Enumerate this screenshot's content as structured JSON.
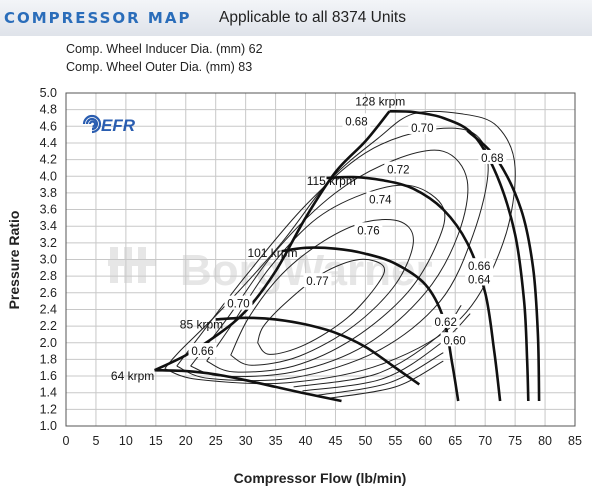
{
  "header": {
    "title": "COMPRESSOR MAP",
    "subtitle": "Applicable to all 8374 Units"
  },
  "specs": {
    "inducer": "Comp. Wheel Inducer Dia. (mm) 62",
    "outer": "Comp. Wheel Outer Dia. (mm) 83"
  },
  "logo": {
    "efr": "EFR",
    "watermark": "BorgWarner"
  },
  "colors": {
    "header_text": "#2a6dba",
    "logo": "#2a5db0",
    "curves": "#111111"
  },
  "chart_data": {
    "type": "line",
    "xlabel": "Compressor Flow (lb/min)",
    "ylabel": "Pressure Ratio",
    "xlim": [
      0,
      85
    ],
    "ylim": [
      1.0,
      5.0
    ],
    "xticks": [
      0,
      5,
      10,
      15,
      20,
      25,
      30,
      35,
      40,
      45,
      50,
      55,
      60,
      65,
      70,
      75,
      80,
      85
    ],
    "yticks": [
      1.0,
      1.2,
      1.4,
      1.6,
      1.8,
      2.0,
      2.2,
      2.4,
      2.6,
      2.8,
      3.0,
      3.2,
      3.4,
      3.6,
      3.8,
      4.0,
      4.2,
      4.4,
      4.6,
      4.8,
      5.0
    ],
    "ytick_labels": [
      "1.0",
      "1.2",
      "1.4",
      "1.6",
      "1.8",
      "2.0",
      "2.2",
      "2.4",
      "2.6",
      "2.8",
      "3.0",
      "3.2",
      "3.4",
      "3.6",
      "3.8",
      "4.0",
      "4.2",
      "4.4",
      "4.6",
      "4.8",
      "5.0"
    ],
    "grid": true,
    "surge_line": [
      [
        14.8,
        1.67
      ],
      [
        20,
        1.85
      ],
      [
        25,
        2.08
      ],
      [
        30,
        2.38
      ],
      [
        35,
        2.86
      ],
      [
        40,
        3.5
      ],
      [
        45,
        4.05
      ],
      [
        50,
        4.42
      ],
      [
        54,
        4.78
      ]
    ],
    "speed_lines": [
      {
        "label": "64 krpm",
        "points": [
          [
            14.8,
            1.67
          ],
          [
            20,
            1.66
          ],
          [
            25,
            1.62
          ],
          [
            30,
            1.55
          ],
          [
            35,
            1.47
          ],
          [
            40,
            1.39
          ],
          [
            46,
            1.3
          ]
        ]
      },
      {
        "label": "85 krpm",
        "points": [
          [
            25,
            2.28
          ],
          [
            30,
            2.3
          ],
          [
            35,
            2.28
          ],
          [
            40,
            2.22
          ],
          [
            45,
            2.12
          ],
          [
            50,
            1.95
          ],
          [
            55,
            1.7
          ],
          [
            59,
            1.5
          ]
        ]
      },
      {
        "label": "101 krpm",
        "points": [
          [
            36,
            3.1
          ],
          [
            40,
            3.14
          ],
          [
            45,
            3.13
          ],
          [
            50,
            3.07
          ],
          [
            55,
            2.95
          ],
          [
            60,
            2.7
          ],
          [
            63,
            2.3
          ],
          [
            64.5,
            1.75
          ],
          [
            65.5,
            1.3
          ]
        ]
      },
      {
        "label": "115 krpm",
        "points": [
          [
            43.5,
            3.98
          ],
          [
            48,
            3.99
          ],
          [
            53,
            3.95
          ],
          [
            58,
            3.85
          ],
          [
            63,
            3.6
          ],
          [
            67,
            3.2
          ],
          [
            70,
            2.6
          ],
          [
            71.5,
            1.9
          ],
          [
            72.5,
            1.3
          ]
        ]
      },
      {
        "label": "128 krpm",
        "points": [
          [
            54,
            4.78
          ],
          [
            58,
            4.77
          ],
          [
            63,
            4.7
          ],
          [
            68,
            4.5
          ],
          [
            72,
            4.0
          ],
          [
            75,
            3.3
          ],
          [
            76.5,
            2.5
          ],
          [
            77,
            1.8
          ],
          [
            77.2,
            1.3
          ]
        ]
      }
    ],
    "choke_line": [
      [
        67,
        4.55
      ],
      [
        72,
        4.2
      ],
      [
        76,
        3.6
      ],
      [
        78,
        2.9
      ],
      [
        78.8,
        2.1
      ],
      [
        79,
        1.3
      ]
    ],
    "efficiency_islands": [
      {
        "label": "0.77",
        "points": [
          [
            32,
            2.0
          ],
          [
            34,
            1.86
          ],
          [
            40,
            1.98
          ],
          [
            47,
            2.3
          ],
          [
            52,
            2.7
          ],
          [
            53,
            2.92
          ],
          [
            49,
            3.0
          ],
          [
            43,
            2.84
          ],
          [
            37,
            2.5
          ],
          [
            33,
            2.2
          ]
        ]
      },
      {
        "label": "0.76",
        "points": [
          [
            27.5,
            1.85
          ],
          [
            31,
            1.73
          ],
          [
            39,
            1.84
          ],
          [
            48,
            2.2
          ],
          [
            55,
            2.7
          ],
          [
            58,
            3.2
          ],
          [
            56,
            3.45
          ],
          [
            50,
            3.45
          ],
          [
            43,
            3.22
          ],
          [
            36,
            2.82
          ],
          [
            30.5,
            2.3
          ]
        ]
      },
      {
        "label": "0.74",
        "points": [
          [
            23.5,
            1.78
          ],
          [
            28,
            1.65
          ],
          [
            38,
            1.72
          ],
          [
            48,
            2.05
          ],
          [
            57,
            2.6
          ],
          [
            62,
            3.2
          ],
          [
            63,
            3.62
          ],
          [
            58,
            3.88
          ],
          [
            51,
            3.82
          ],
          [
            42,
            3.5
          ],
          [
            34,
            2.9
          ],
          [
            28,
            2.25
          ]
        ]
      },
      {
        "label": "0.72",
        "points": [
          [
            20.8,
            1.72
          ],
          [
            26,
            1.6
          ],
          [
            38,
            1.65
          ],
          [
            50,
            1.97
          ],
          [
            60,
            2.6
          ],
          [
            65.5,
            3.3
          ],
          [
            67,
            3.95
          ],
          [
            63,
            4.3
          ],
          [
            55,
            4.2
          ],
          [
            45,
            3.8
          ],
          [
            35,
            3.1
          ],
          [
            27,
            2.3
          ]
        ]
      },
      {
        "label": "0.70",
        "points": [
          [
            18.5,
            1.72
          ],
          [
            24,
            1.57
          ],
          [
            38,
            1.58
          ],
          [
            52,
            1.9
          ],
          [
            62.5,
            2.5
          ],
          [
            68,
            3.3
          ],
          [
            70.5,
            4.1
          ],
          [
            68,
            4.52
          ],
          [
            60,
            4.55
          ],
          [
            50,
            4.28
          ],
          [
            40,
            3.65
          ],
          [
            30,
            2.8
          ],
          [
            22,
            2.05
          ]
        ]
      },
      {
        "label": "0.68",
        "points": [
          [
            16.5,
            1.69
          ],
          [
            22,
            1.56
          ],
          [
            37,
            1.52
          ],
          [
            53,
            1.75
          ],
          [
            66,
            2.3
          ],
          [
            73,
            3.2
          ],
          [
            75,
            4.1
          ],
          [
            72,
            4.6
          ],
          [
            66,
            4.75
          ],
          [
            58,
            4.75
          ],
          [
            52,
            4.45
          ],
          [
            44,
            3.95
          ],
          [
            36,
            3.2
          ],
          [
            26,
            2.4
          ],
          [
            19,
            1.9
          ]
        ]
      },
      {
        "label": "0.66",
        "points": [
          [
            38,
            1.47
          ],
          [
            52,
            1.63
          ],
          [
            62,
            2.07
          ],
          [
            66,
            2.45
          ]
        ]
      },
      {
        "label": "0.64",
        "points": [
          [
            39.5,
            1.42
          ],
          [
            53,
            1.57
          ],
          [
            62.5,
            1.99
          ],
          [
            67.5,
            2.35
          ]
        ]
      },
      {
        "label": "0.62",
        "points": [
          [
            42,
            1.37
          ],
          [
            54,
            1.52
          ],
          [
            63,
            1.88
          ]
        ]
      },
      {
        "label": "0.60",
        "points": [
          [
            43.5,
            1.33
          ],
          [
            55,
            1.47
          ],
          [
            63,
            1.78
          ]
        ]
      }
    ],
    "efficiency_annotations": [
      {
        "label": "0.68",
        "x": 48.5,
        "y": 4.66
      },
      {
        "label": "0.70",
        "x": 59.5,
        "y": 4.58
      },
      {
        "label": "0.72",
        "x": 55.5,
        "y": 4.08
      },
      {
        "label": "0.74",
        "x": 52.5,
        "y": 3.72
      },
      {
        "label": "0.76",
        "x": 50.5,
        "y": 3.35
      },
      {
        "label": "0.77",
        "x": 42,
        "y": 2.74
      },
      {
        "label": "0.70",
        "x": 28.8,
        "y": 2.47
      },
      {
        "label": "0.66",
        "x": 22.8,
        "y": 1.9
      },
      {
        "label": "0.68",
        "x": 71.2,
        "y": 4.22
      },
      {
        "label": "0.66",
        "x": 69,
        "y": 2.92
      },
      {
        "label": "0.64",
        "x": 69,
        "y": 2.76
      },
      {
        "label": "0.62",
        "x": 63.4,
        "y": 2.25
      },
      {
        "label": "0.60",
        "x": 64.9,
        "y": 2.03
      }
    ],
    "speed_annotations": [
      {
        "label": "128 krpm",
        "x": 48.3,
        "y": 4.9
      },
      {
        "label": "115 krpm",
        "x": 40.2,
        "y": 3.94
      },
      {
        "label": "101 krpm",
        "x": 30.3,
        "y": 3.08
      },
      {
        "label": "85 krpm",
        "x": 19,
        "y": 2.22
      },
      {
        "label": "64 krpm",
        "x": 7.5,
        "y": 1.6
      }
    ]
  }
}
